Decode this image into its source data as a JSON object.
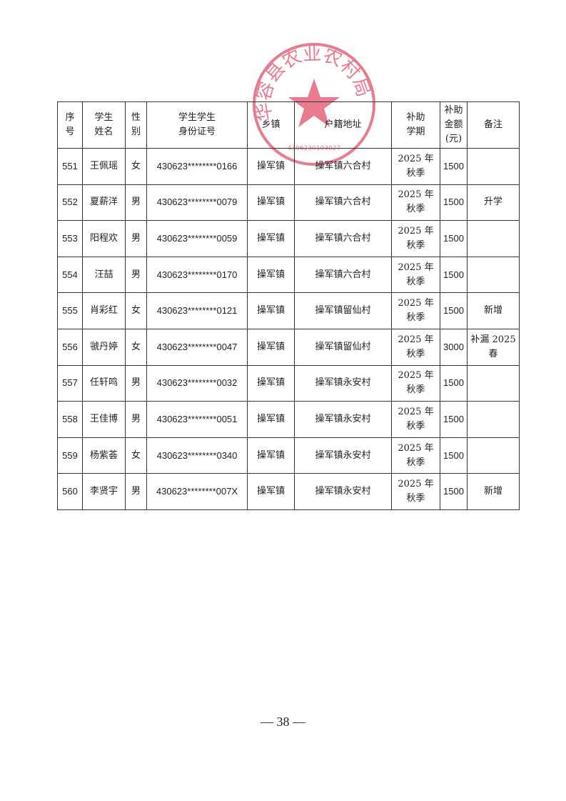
{
  "table": {
    "headers": [
      "序\n号",
      "学生\n姓名",
      "性\n别",
      "学生学生\n身份证号",
      "乡镇",
      "户籍地址",
      "补助\n学期",
      "补助\n金额\n(元)",
      "备注"
    ],
    "rows": [
      [
        "551",
        "王佩瑶",
        "女",
        "430623********0166",
        "操军镇",
        "操军镇六合村",
        "2025 年\n秋季",
        "1500",
        ""
      ],
      [
        "552",
        "夏薪洋",
        "男",
        "430623********0079",
        "操军镇",
        "操军镇六合村",
        "2025 年\n秋季",
        "1500",
        "升学"
      ],
      [
        "553",
        "阳程欢",
        "男",
        "430623********0059",
        "操军镇",
        "操军镇六合村",
        "2025 年\n秋季",
        "1500",
        ""
      ],
      [
        "554",
        "汪喆",
        "男",
        "430623********0170",
        "操军镇",
        "操军镇六合村",
        "2025 年\n秋季",
        "1500",
        ""
      ],
      [
        "555",
        "肖彩红",
        "女",
        "430623********0121",
        "操军镇",
        "操军镇留仙村",
        "2025 年\n秋季",
        "1500",
        "新增"
      ],
      [
        "556",
        "虢丹婷",
        "女",
        "430623********0047",
        "操军镇",
        "操军镇留仙村",
        "2025 年\n秋季",
        "3000",
        "补漏 2025\n春"
      ],
      [
        "557",
        "任轩鸣",
        "男",
        "430623********0032",
        "操军镇",
        "操军镇永安村",
        "2025 年\n秋季",
        "1500",
        ""
      ],
      [
        "558",
        "王佳博",
        "男",
        "430623********0051",
        "操军镇",
        "操军镇永安村",
        "2025 年\n秋季",
        "1500",
        ""
      ],
      [
        "559",
        "杨紫荟",
        "女",
        "430623********0340",
        "操军镇",
        "操军镇永安村",
        "2025 年\n秋季",
        "1500",
        ""
      ],
      [
        "560",
        "李贤宇",
        "男",
        "430623********007X",
        "操军镇",
        "操军镇永安村",
        "2025 年\n秋季",
        "1500",
        "新增"
      ]
    ]
  },
  "seal": {
    "text": "华容县农业农村局",
    "code": "4306230103027",
    "color": "#e0506a"
  },
  "page_number": "— 38 —"
}
